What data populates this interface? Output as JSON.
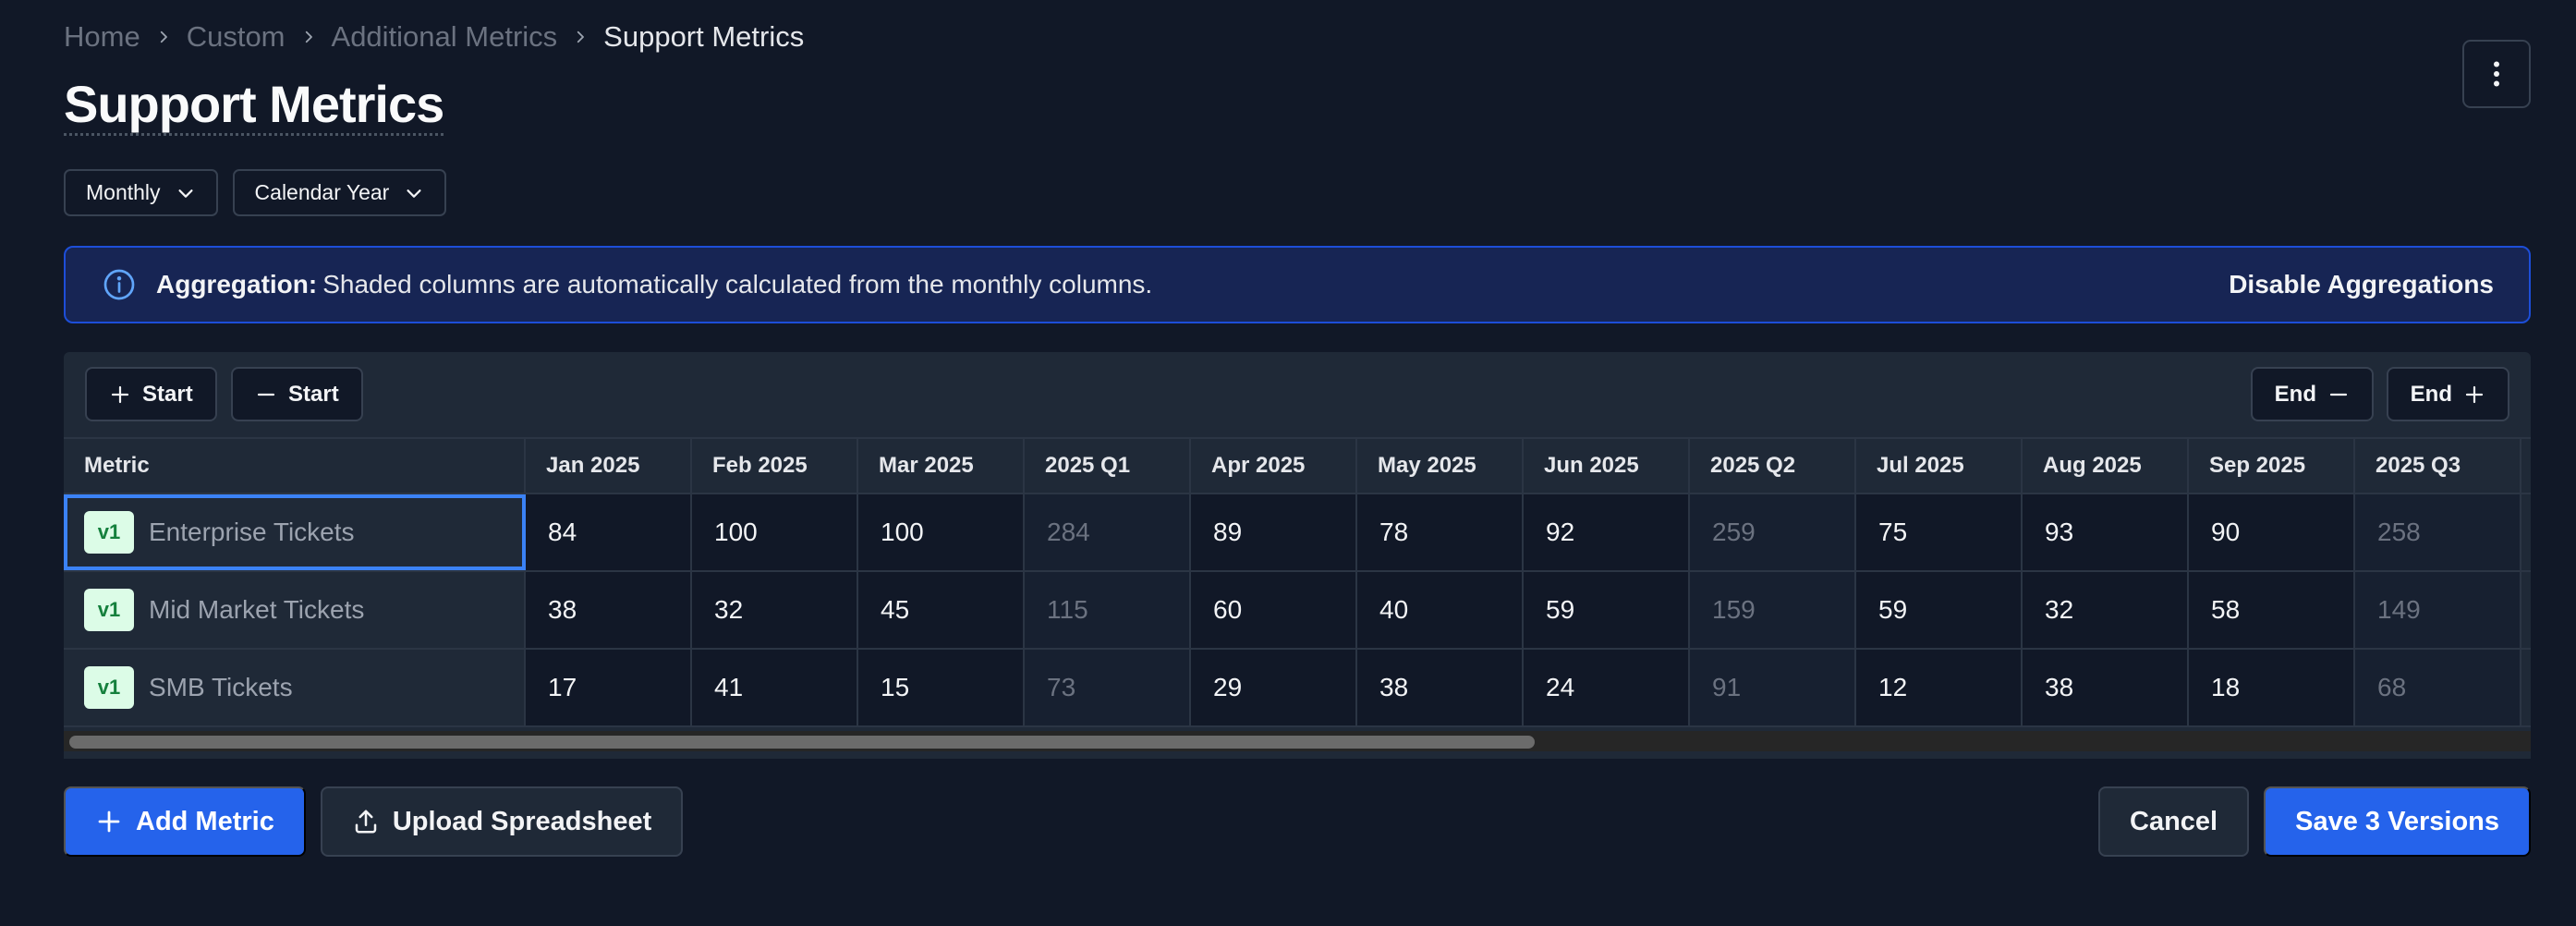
{
  "breadcrumb": [
    {
      "label": "Home"
    },
    {
      "label": "Custom"
    },
    {
      "label": "Additional Metrics"
    },
    {
      "label": "Support Metrics"
    }
  ],
  "page_title": "Support Metrics",
  "filters": {
    "period": "Monthly",
    "year_type": "Calendar Year"
  },
  "banner": {
    "label": "Aggregation:",
    "text": "Shaded columns are automatically calculated from the monthly columns.",
    "action": "Disable Aggregations"
  },
  "toolbar": {
    "add_start": "Start",
    "remove_start": "Start",
    "remove_end": "End",
    "add_end": "End"
  },
  "table": {
    "columns": [
      "Metric",
      "Jan 2025",
      "Feb 2025",
      "Mar 2025",
      "2025 Q1",
      "Apr 2025",
      "May 2025",
      "Jun 2025",
      "2025 Q2",
      "Jul 2025",
      "Aug 2025",
      "Sep 2025",
      "2025 Q3"
    ],
    "aggregate_columns": [
      4,
      8,
      12
    ],
    "rows": [
      {
        "version": "v1",
        "name": "Enterprise Tickets",
        "values": [
          "84",
          "100",
          "100",
          "284",
          "89",
          "78",
          "92",
          "259",
          "75",
          "93",
          "90",
          "258"
        ]
      },
      {
        "version": "v1",
        "name": "Mid Market Tickets",
        "values": [
          "38",
          "32",
          "45",
          "115",
          "60",
          "40",
          "59",
          "159",
          "59",
          "32",
          "58",
          "149"
        ]
      },
      {
        "version": "v1",
        "name": "SMB Tickets",
        "values": [
          "17",
          "41",
          "15",
          "73",
          "29",
          "38",
          "24",
          "91",
          "12",
          "38",
          "18",
          "68"
        ]
      }
    ]
  },
  "footer": {
    "add_metric": "Add Metric",
    "upload": "Upload Spreadsheet",
    "cancel": "Cancel",
    "save": "Save 3 Versions"
  },
  "colors": {
    "background": "#111827",
    "primary": "#2563eb",
    "banner": "#172554",
    "badge": "#dcfce7"
  }
}
